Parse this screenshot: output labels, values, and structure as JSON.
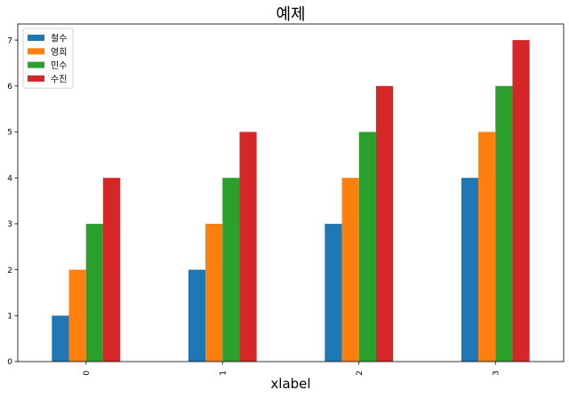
{
  "chart_data": {
    "type": "bar",
    "title": "예제",
    "xlabel": "xlabel",
    "ylabel": "",
    "categories": [
      "0",
      "1",
      "2",
      "3"
    ],
    "ylim": [
      0,
      7.35
    ],
    "yticks": [
      "0",
      "1",
      "2",
      "3",
      "4",
      "5",
      "6",
      "7"
    ],
    "grid": false,
    "legend_position": "top-left",
    "series": [
      {
        "name": "철수",
        "values": [
          1,
          2,
          3,
          4
        ],
        "color": "#1f77b4"
      },
      {
        "name": "영희",
        "values": [
          2,
          3,
          4,
          5
        ],
        "color": "#ff7f0e"
      },
      {
        "name": "민수",
        "values": [
          3,
          4,
          5,
          6
        ],
        "color": "#2ca02c"
      },
      {
        "name": "수진",
        "values": [
          4,
          5,
          6,
          7
        ],
        "color": "#d62728"
      }
    ]
  }
}
